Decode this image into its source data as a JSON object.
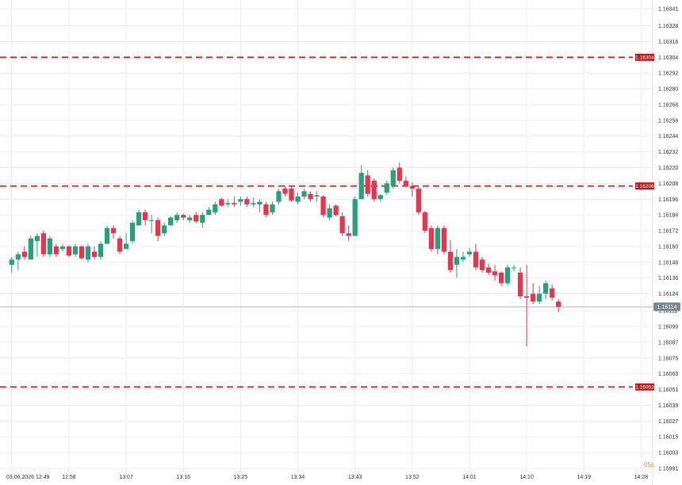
{
  "chart_data": {
    "type": "candlestick",
    "ylim": [
      1.15991,
      1.16341
    ],
    "y_ticks": [
      "1.16341",
      "1.16328",
      "1.16316",
      "1.16304",
      "1.16292",
      "1.16280",
      "1.16268",
      "1.16256",
      "1.16244",
      "1.16232",
      "1.16220",
      "1.16208",
      "1.16196",
      "1.16184",
      "1.16172",
      "1.16160",
      "1.16148",
      "1.16136",
      "1.16124",
      "1.16111",
      "1.16099",
      "1.16087",
      "1.16075",
      "1.16063",
      "1.16051",
      "1.16039",
      "1.16027",
      "1.16015",
      "1.16003",
      "1.15991"
    ],
    "x_ticks": [
      {
        "label": "03.06.2026 12:49",
        "min": 0
      },
      {
        "label": "12:58",
        "min": 9
      },
      {
        "label": "13:07",
        "min": 18
      },
      {
        "label": "13:16",
        "min": 27
      },
      {
        "label": "13:25",
        "min": 36
      },
      {
        "label": "13:34",
        "min": 45
      },
      {
        "label": "13:43",
        "min": 54
      },
      {
        "label": "13:52",
        "min": 63
      },
      {
        "label": "14:01",
        "min": 72
      },
      {
        "label": "14:10",
        "min": 81
      },
      {
        "label": "14:19",
        "min": 90
      },
      {
        "label": "14:28",
        "min": 99
      }
    ],
    "x_range": [
      -0.6,
      99.2
    ],
    "candle_step_min": 1,
    "levels": [
      {
        "value": 1.16304,
        "label": "1.16304"
      },
      {
        "value": 1.16206,
        "label": "1.16206"
      },
      {
        "value": 1.16053,
        "label": "1.16053"
      }
    ],
    "current_price": {
      "value": 1.16114,
      "label": "1.16114"
    },
    "timer": "05s",
    "colors": {
      "up": "#26a17b",
      "down": "#e8344e",
      "level": "#e02424",
      "level_tag": "#c81414",
      "current": "#b8bfc4",
      "current_tag": "#7d868c",
      "grid": "#ececec"
    },
    "candles": [
      {
        "o": 1.16146,
        "h": 1.16152,
        "l": 1.1614,
        "c": 1.1615
      },
      {
        "o": 1.1615,
        "h": 1.16156,
        "l": 1.16142,
        "c": 1.16154
      },
      {
        "o": 1.16156,
        "h": 1.1616,
        "l": 1.1615,
        "c": 1.16152
      },
      {
        "o": 1.1615,
        "h": 1.16168,
        "l": 1.1615,
        "c": 1.16166
      },
      {
        "o": 1.16164,
        "h": 1.1617,
        "l": 1.16152,
        "c": 1.16168
      },
      {
        "o": 1.1617,
        "h": 1.16172,
        "l": 1.16152,
        "c": 1.16154
      },
      {
        "o": 1.16154,
        "h": 1.16168,
        "l": 1.16152,
        "c": 1.16166
      },
      {
        "o": 1.1616,
        "h": 1.16162,
        "l": 1.16152,
        "c": 1.16154
      },
      {
        "o": 1.16158,
        "h": 1.16162,
        "l": 1.16156,
        "c": 1.1616
      },
      {
        "o": 1.1616,
        "h": 1.16161,
        "l": 1.16152,
        "c": 1.16153
      },
      {
        "o": 1.16154,
        "h": 1.16162,
        "l": 1.16152,
        "c": 1.1616
      },
      {
        "o": 1.1616,
        "h": 1.16161,
        "l": 1.1615,
        "c": 1.16151
      },
      {
        "o": 1.1615,
        "h": 1.16162,
        "l": 1.16148,
        "c": 1.1616
      },
      {
        "o": 1.16156,
        "h": 1.1616,
        "l": 1.1615,
        "c": 1.16152
      },
      {
        "o": 1.16152,
        "h": 1.16164,
        "l": 1.1615,
        "c": 1.16162
      },
      {
        "o": 1.16162,
        "h": 1.16176,
        "l": 1.16162,
        "c": 1.16174
      },
      {
        "o": 1.16174,
        "h": 1.16176,
        "l": 1.16166,
        "c": 1.1617
      },
      {
        "o": 1.16166,
        "h": 1.16168,
        "l": 1.16154,
        "c": 1.16156
      },
      {
        "o": 1.16158,
        "h": 1.1617,
        "l": 1.16158,
        "c": 1.16162
      },
      {
        "o": 1.16164,
        "h": 1.1618,
        "l": 1.16162,
        "c": 1.16178
      },
      {
        "o": 1.16176,
        "h": 1.16188,
        "l": 1.16176,
        "c": 1.16186
      },
      {
        "o": 1.16186,
        "h": 1.16188,
        "l": 1.16176,
        "c": 1.1618
      },
      {
        "o": 1.1618,
        "h": 1.16184,
        "l": 1.1617,
        "c": 1.1618
      },
      {
        "o": 1.1618,
        "h": 1.16182,
        "l": 1.16164,
        "c": 1.16168
      },
      {
        "o": 1.1617,
        "h": 1.16178,
        "l": 1.16168,
        "c": 1.16176
      },
      {
        "o": 1.16176,
        "h": 1.16183,
        "l": 1.16176,
        "c": 1.16182
      },
      {
        "o": 1.1618,
        "h": 1.16186,
        "l": 1.16178,
        "c": 1.16184
      },
      {
        "o": 1.16184,
        "h": 1.16185,
        "l": 1.1618,
        "c": 1.16182
      },
      {
        "o": 1.1618,
        "h": 1.16184,
        "l": 1.16178,
        "c": 1.16182
      },
      {
        "o": 1.16184,
        "h": 1.16186,
        "l": 1.16178,
        "c": 1.16179
      },
      {
        "o": 1.16178,
        "h": 1.16186,
        "l": 1.16174,
        "c": 1.16184
      },
      {
        "o": 1.16184,
        "h": 1.1619,
        "l": 1.16184,
        "c": 1.16188
      },
      {
        "o": 1.16186,
        "h": 1.16194,
        "l": 1.16184,
        "c": 1.16192
      },
      {
        "o": 1.16196,
        "h": 1.16197,
        "l": 1.1619,
        "c": 1.16191
      },
      {
        "o": 1.16192,
        "h": 1.16196,
        "l": 1.1619,
        "c": 1.16193
      },
      {
        "o": 1.16193,
        "h": 1.16198,
        "l": 1.1619,
        "c": 1.16192
      },
      {
        "o": 1.16194,
        "h": 1.16198,
        "l": 1.16191,
        "c": 1.16196
      },
      {
        "o": 1.16196,
        "h": 1.16198,
        "l": 1.1619,
        "c": 1.16192
      },
      {
        "o": 1.16192,
        "h": 1.16197,
        "l": 1.1619,
        "c": 1.16193
      },
      {
        "o": 1.16192,
        "h": 1.16196,
        "l": 1.16186,
        "c": 1.16194
      },
      {
        "o": 1.16192,
        "h": 1.16194,
        "l": 1.16182,
        "c": 1.16184
      },
      {
        "o": 1.16186,
        "h": 1.16194,
        "l": 1.16184,
        "c": 1.16192
      },
      {
        "o": 1.16194,
        "h": 1.16204,
        "l": 1.16192,
        "c": 1.16202
      },
      {
        "o": 1.16204,
        "h": 1.16206,
        "l": 1.16198,
        "c": 1.162
      },
      {
        "o": 1.16204,
        "h": 1.16206,
        "l": 1.16194,
        "c": 1.16195
      },
      {
        "o": 1.16194,
        "h": 1.16201,
        "l": 1.16192,
        "c": 1.16198
      },
      {
        "o": 1.16198,
        "h": 1.16204,
        "l": 1.16196,
        "c": 1.16202
      },
      {
        "o": 1.162,
        "h": 1.16202,
        "l": 1.16194,
        "c": 1.16196
      },
      {
        "o": 1.16198,
        "h": 1.16202,
        "l": 1.16194,
        "c": 1.16199
      },
      {
        "o": 1.16198,
        "h": 1.16199,
        "l": 1.16182,
        "c": 1.16184
      },
      {
        "o": 1.16182,
        "h": 1.16192,
        "l": 1.1618,
        "c": 1.16189
      },
      {
        "o": 1.16191,
        "h": 1.16192,
        "l": 1.16183,
        "c": 1.16184
      },
      {
        "o": 1.16183,
        "h": 1.16186,
        "l": 1.16168,
        "c": 1.1617
      },
      {
        "o": 1.1617,
        "h": 1.16176,
        "l": 1.16164,
        "c": 1.16168
      },
      {
        "o": 1.16168,
        "h": 1.16198,
        "l": 1.16168,
        "c": 1.16196
      },
      {
        "o": 1.16196,
        "h": 1.16222,
        "l": 1.16196,
        "c": 1.16216
      },
      {
        "o": 1.16214,
        "h": 1.16218,
        "l": 1.16198,
        "c": 1.162
      },
      {
        "o": 1.1621,
        "h": 1.16212,
        "l": 1.16194,
        "c": 1.16196
      },
      {
        "o": 1.16196,
        "h": 1.162,
        "l": 1.16194,
        "c": 1.16199
      },
      {
        "o": 1.16201,
        "h": 1.1621,
        "l": 1.16199,
        "c": 1.16208
      },
      {
        "o": 1.16206,
        "h": 1.1622,
        "l": 1.16204,
        "c": 1.16218
      },
      {
        "o": 1.1622,
        "h": 1.16224,
        "l": 1.16208,
        "c": 1.1621
      },
      {
        "o": 1.1621,
        "h": 1.16213,
        "l": 1.16205,
        "c": 1.16206
      },
      {
        "o": 1.16206,
        "h": 1.16209,
        "l": 1.16198,
        "c": 1.16204
      },
      {
        "o": 1.16204,
        "h": 1.16206,
        "l": 1.16184,
        "c": 1.16186
      },
      {
        "o": 1.16186,
        "h": 1.16187,
        "l": 1.1617,
        "c": 1.16172
      },
      {
        "o": 1.16174,
        "h": 1.16176,
        "l": 1.16156,
        "c": 1.16158
      },
      {
        "o": 1.16158,
        "h": 1.16176,
        "l": 1.16154,
        "c": 1.16174
      },
      {
        "o": 1.16174,
        "h": 1.16176,
        "l": 1.16154,
        "c": 1.16156
      },
      {
        "o": 1.16156,
        "h": 1.16165,
        "l": 1.1614,
        "c": 1.16142
      },
      {
        "o": 1.16146,
        "h": 1.16158,
        "l": 1.16136,
        "c": 1.16152
      },
      {
        "o": 1.1615,
        "h": 1.16156,
        "l": 1.16148,
        "c": 1.16152
      },
      {
        "o": 1.16154,
        "h": 1.16159,
        "l": 1.16152,
        "c": 1.16156
      },
      {
        "o": 1.16156,
        "h": 1.16162,
        "l": 1.16142,
        "c": 1.16144
      },
      {
        "o": 1.1615,
        "h": 1.16152,
        "l": 1.1614,
        "c": 1.16142
      },
      {
        "o": 1.16144,
        "h": 1.16147,
        "l": 1.16138,
        "c": 1.1614
      },
      {
        "o": 1.16141,
        "h": 1.16146,
        "l": 1.16134,
        "c": 1.16138
      },
      {
        "o": 1.1614,
        "h": 1.16141,
        "l": 1.1613,
        "c": 1.16132
      },
      {
        "o": 1.16132,
        "h": 1.16146,
        "l": 1.1613,
        "c": 1.16144
      },
      {
        "o": 1.16144,
        "h": 1.16146,
        "l": 1.16141,
        "c": 1.16144
      },
      {
        "o": 1.1614,
        "h": 1.16144,
        "l": 1.1612,
        "c": 1.16122
      },
      {
        "o": 1.16122,
        "h": 1.16146,
        "l": 1.16084,
        "c": 1.16121
      },
      {
        "o": 1.16124,
        "h": 1.16132,
        "l": 1.16116,
        "c": 1.16118
      },
      {
        "o": 1.16118,
        "h": 1.1613,
        "l": 1.16116,
        "c": 1.16124
      },
      {
        "o": 1.16124,
        "h": 1.16134,
        "l": 1.1612,
        "c": 1.16132
      },
      {
        "o": 1.16128,
        "h": 1.16131,
        "l": 1.16119,
        "c": 1.16121
      },
      {
        "o": 1.16118,
        "h": 1.1612,
        "l": 1.1611,
        "c": 1.16114
      }
    ]
  }
}
